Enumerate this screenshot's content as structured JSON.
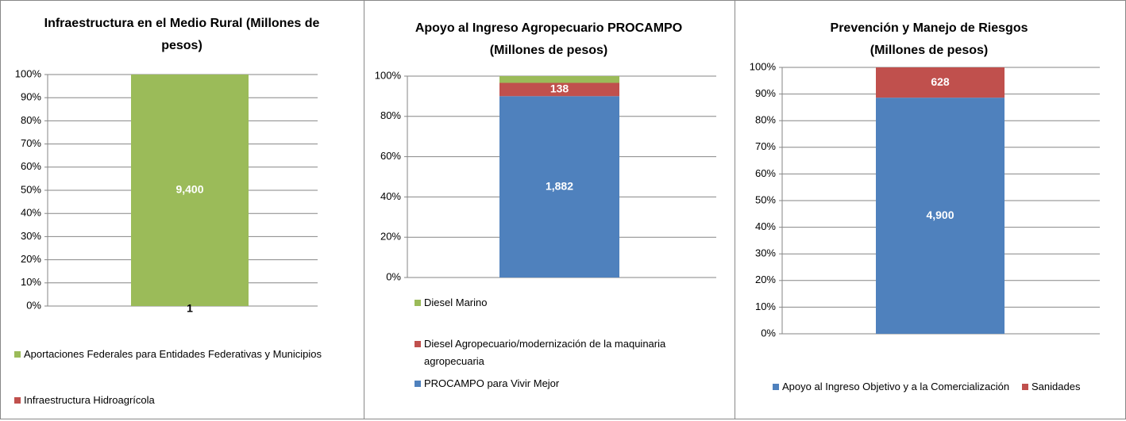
{
  "chart_data": [
    {
      "type": "stacked_bar_percent",
      "title": "Infraestructura en el Medio Rural (Millones de pesos)",
      "categories": [
        null
      ],
      "series": [
        {
          "name": "Infraestructura Hidroagrícola",
          "color": "#c0504d",
          "values": [
            1
          ]
        },
        {
          "name": "Aportaciones Federales para Entidades Federativas y Municipios",
          "color": "#9bbb59",
          "values": [
            9400
          ],
          "value_labels": [
            "9,400"
          ]
        }
      ],
      "ylim": [
        0,
        100
      ],
      "yticks": [
        {
          "value": 0,
          "label": "0%"
        },
        {
          "value": 10,
          "label": "10%"
        },
        {
          "value": 20,
          "label": "20%"
        },
        {
          "value": 30,
          "label": "30%"
        },
        {
          "value": 40,
          "label": "40%"
        },
        {
          "value": 50,
          "label": "50%"
        },
        {
          "value": 60,
          "label": "60%"
        },
        {
          "value": 70,
          "label": "70%"
        },
        {
          "value": 80,
          "label": "80%"
        },
        {
          "value": 90,
          "label": "90%"
        },
        {
          "value": 100,
          "label": "100%"
        }
      ],
      "grid": true
    },
    {
      "type": "stacked_bar_percent",
      "title": "Apoyo al Ingreso Agropecuario PROCAMPO (Millones de pesos)",
      "categories": [
        null
      ],
      "series": [
        {
          "name": "PROCAMPO para Vivir Mejor",
          "color": "#4f81bd",
          "values": [
            1882
          ],
          "value_labels": [
            "1,882"
          ]
        },
        {
          "name": "Diesel Agropecuario/modernización de la maquinaria agropecuaria",
          "color": "#c0504d",
          "values": [
            138
          ]
        },
        {
          "name": "Diesel Marino",
          "color": "#9bbb59",
          "values": [
            70
          ]
        }
      ],
      "ylim": [
        0,
        100
      ],
      "yticks": [
        {
          "value": 0,
          "label": "0%"
        },
        {
          "value": 20,
          "label": "20%"
        },
        {
          "value": 40,
          "label": "40%"
        },
        {
          "value": 60,
          "label": "60%"
        },
        {
          "value": 80,
          "label": "80%"
        },
        {
          "value": 100,
          "label": "100%"
        }
      ],
      "grid": true
    },
    {
      "type": "stacked_bar_percent",
      "title": "Prevención y Manejo de Riesgos (Millones de pesos)",
      "categories": [
        null
      ],
      "series": [
        {
          "name": "Apoyo al Ingreso Objetivo y a la Comercialización",
          "color": "#4f81bd",
          "values": [
            4900
          ],
          "value_labels": [
            "4,900"
          ]
        },
        {
          "name": "Sanidades",
          "color": "#c0504d",
          "values": [
            628
          ]
        }
      ],
      "ylim": [
        0,
        100
      ],
      "yticks": [
        {
          "value": 0,
          "label": "0%"
        },
        {
          "value": 10,
          "label": "10%"
        },
        {
          "value": 20,
          "label": "20%"
        },
        {
          "value": 30,
          "label": "30%"
        },
        {
          "value": 40,
          "label": "40%"
        },
        {
          "value": 50,
          "label": "50%"
        },
        {
          "value": 60,
          "label": "60%"
        },
        {
          "value": 70,
          "label": "70%"
        },
        {
          "value": 80,
          "label": "80%"
        },
        {
          "value": 90,
          "label": "90%"
        },
        {
          "value": 100,
          "label": "100%"
        }
      ],
      "grid": true
    }
  ]
}
